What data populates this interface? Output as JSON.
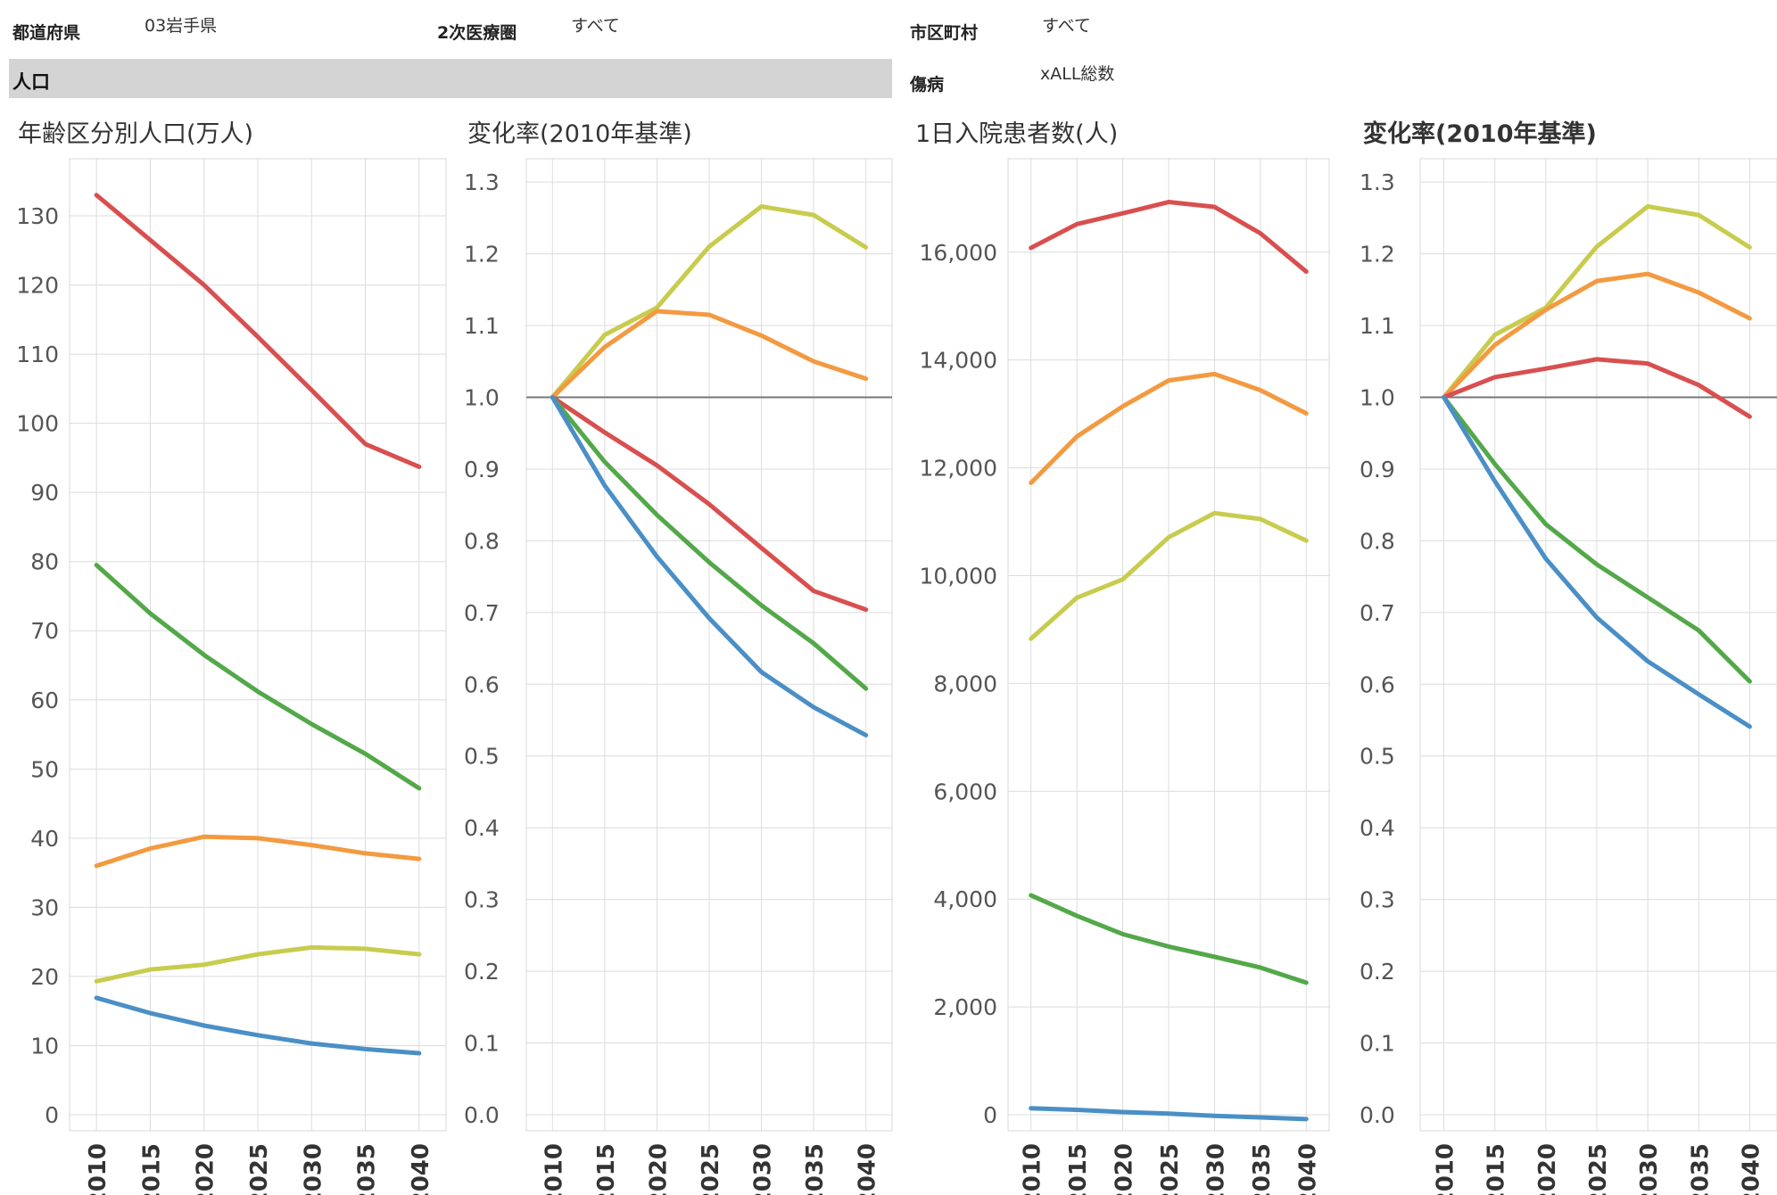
{
  "filters": {
    "prefecture_label": "都道府県",
    "prefecture_value": "03岩手県",
    "region_label": "2次医療圏",
    "region_value": "すべて",
    "city_label": "市区町村",
    "city_value": "すべて",
    "disease_label": "傷病",
    "disease_value": "xALL総数"
  },
  "section": {
    "title": "人口"
  },
  "colors": {
    "red": "#d94f4f",
    "orange": "#f39a41",
    "yellow": "#c8cc4e",
    "green": "#53a849",
    "blue": "#4a8fc6"
  },
  "chart_data": [
    {
      "type": "line",
      "title": "年齢区分別人口(万人)",
      "x": [
        "2010",
        "2015",
        "2020",
        "2025",
        "2030",
        "2035",
        "2040"
      ],
      "ylim": [
        0,
        138
      ],
      "yticks": [
        "0",
        "10",
        "20",
        "30",
        "40",
        "50",
        "60",
        "70",
        "80",
        "90",
        "100",
        "110",
        "120",
        "130"
      ],
      "grid": true,
      "series": [
        {
          "color": "red",
          "values": [
            133,
            126.5,
            120,
            112.5,
            104.8,
            97.0,
            93.7
          ]
        },
        {
          "color": "green",
          "values": [
            79.5,
            72.5,
            66.5,
            61.2,
            56.5,
            52.2,
            47.2
          ]
        },
        {
          "color": "orange",
          "values": [
            36.0,
            38.5,
            40.2,
            40.0,
            39.0,
            37.8,
            37.0
          ]
        },
        {
          "color": "yellow",
          "values": [
            19.3,
            21.0,
            21.7,
            23.2,
            24.2,
            24.0,
            23.2
          ]
        },
        {
          "color": "blue",
          "values": [
            16.9,
            14.7,
            12.9,
            11.5,
            10.3,
            9.5,
            8.9
          ]
        }
      ]
    },
    {
      "type": "line",
      "title": "変化率(2010年基準)",
      "x": [
        "2010",
        "2015",
        "2020",
        "2025",
        "2030",
        "2035",
        "2040"
      ],
      "ylim": [
        0,
        1.33
      ],
      "yticks": [
        "0.0",
        "0.1",
        "0.2",
        "0.3",
        "0.4",
        "0.5",
        "0.6",
        "0.7",
        "0.8",
        "0.9",
        "1.0",
        "1.1",
        "1.2",
        "1.3"
      ],
      "reference_line": 1.0,
      "grid": true,
      "series": [
        {
          "color": "yellow",
          "values": [
            1.0,
            1.087,
            1.125,
            1.21,
            1.266,
            1.254,
            1.209
          ]
        },
        {
          "color": "orange",
          "values": [
            1.0,
            1.07,
            1.12,
            1.115,
            1.086,
            1.05,
            1.026
          ]
        },
        {
          "color": "red",
          "values": [
            1.0,
            0.951,
            0.905,
            0.851,
            0.79,
            0.73,
            0.704
          ]
        },
        {
          "color": "green",
          "values": [
            1.0,
            0.91,
            0.836,
            0.77,
            0.71,
            0.657,
            0.594
          ]
        },
        {
          "color": "blue",
          "values": [
            1.0,
            0.877,
            0.778,
            0.692,
            0.617,
            0.568,
            0.529
          ]
        }
      ]
    },
    {
      "type": "line",
      "title": "1日入院患者数(人)",
      "x": [
        "2010",
        "2015",
        "2020",
        "2025",
        "2030",
        "2035",
        "2040"
      ],
      "ylim": [
        0,
        17700
      ],
      "yticks": [
        "0",
        "2,000",
        "4,000",
        "6,000",
        "8,000",
        "10,000",
        "12,000",
        "14,000",
        "16,000"
      ],
      "grid": true,
      "series": [
        {
          "color": "red",
          "values": [
            16080,
            16520,
            16720,
            16930,
            16840,
            16350,
            15640
          ]
        },
        {
          "color": "orange",
          "values": [
            11720,
            12580,
            13140,
            13620,
            13740,
            13440,
            13010
          ]
        },
        {
          "color": "yellow",
          "values": [
            8830,
            9590,
            9930,
            10710,
            11160,
            11050,
            10650
          ]
        },
        {
          "color": "green",
          "values": [
            4070,
            3690,
            3350,
            3120,
            2930,
            2730,
            2450
          ]
        },
        {
          "color": "blue",
          "values": [
            120,
            90,
            50,
            20,
            -20,
            -50,
            -80
          ]
        }
      ]
    },
    {
      "type": "line",
      "title": "変化率(2010年基準)",
      "x": [
        "2010",
        "2015",
        "2020",
        "2025",
        "2030",
        "2035",
        "2040"
      ],
      "ylim": [
        0,
        1.33
      ],
      "yticks": [
        "0.0",
        "0.1",
        "0.2",
        "0.3",
        "0.4",
        "0.5",
        "0.6",
        "0.7",
        "0.8",
        "0.9",
        "1.0",
        "1.1",
        "1.2",
        "1.3"
      ],
      "reference_line": 1.0,
      "grid": true,
      "series": [
        {
          "color": "yellow",
          "values": [
            1.0,
            1.087,
            1.125,
            1.21,
            1.266,
            1.254,
            1.209
          ]
        },
        {
          "color": "orange",
          "values": [
            1.0,
            1.073,
            1.122,
            1.162,
            1.172,
            1.146,
            1.11
          ]
        },
        {
          "color": "red",
          "values": [
            1.0,
            1.028,
            1.04,
            1.053,
            1.047,
            1.017,
            0.973
          ]
        },
        {
          "color": "green",
          "values": [
            1.0,
            0.907,
            0.823,
            0.767,
            0.721,
            0.675,
            0.604
          ]
        },
        {
          "color": "blue",
          "values": [
            1.0,
            0.883,
            0.775,
            0.693,
            0.632,
            0.586,
            0.541
          ]
        }
      ]
    }
  ]
}
